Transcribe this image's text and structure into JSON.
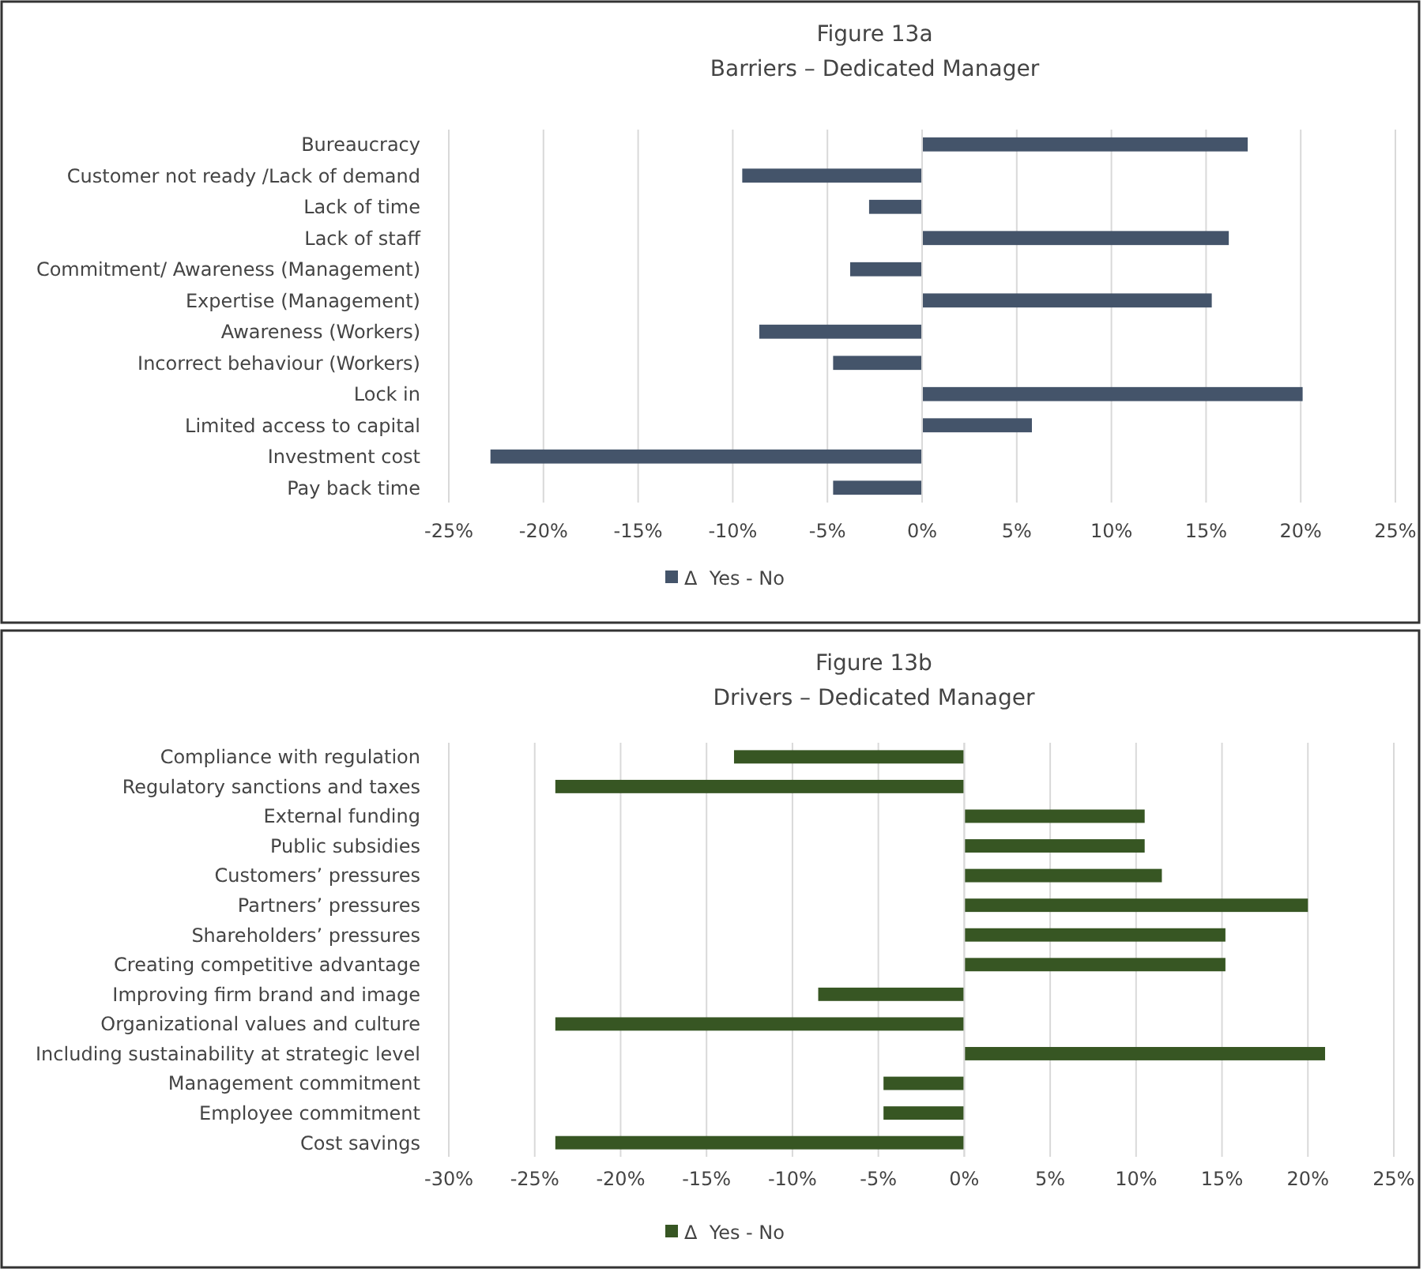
{
  "chart_data": [
    {
      "type": "bar",
      "orientation": "horizontal",
      "title": "Figure 13a",
      "subtitle": "Barriers – Dedicated Manager",
      "categories": [
        "Bureaucracy",
        "Customer not ready /Lack of demand",
        "Lack of time",
        "Lack of staff",
        "Commitment/ Awareness (Management)",
        "Expertise (Management)",
        "Awareness (Workers)",
        "Incorrect behaviour (Workers)",
        "Lock in",
        "Limited access to capital",
        "Investment cost",
        "Pay back time"
      ],
      "series": [
        {
          "name": "Δ  Yes - No",
          "color": "#44546a",
          "values": [
            17.2,
            -9.5,
            -2.8,
            16.2,
            -3.8,
            15.3,
            -8.6,
            -4.7,
            20.1,
            5.8,
            -22.8,
            -4.7
          ]
        }
      ],
      "xlim": [
        -25,
        25
      ],
      "xticks": [
        {
          "value": -25,
          "label": "-25%"
        },
        {
          "value": -20,
          "label": "-20%"
        },
        {
          "value": -15,
          "label": "-15%"
        },
        {
          "value": -10,
          "label": "-10%"
        },
        {
          "value": -5,
          "label": "-5%"
        },
        {
          "value": 0,
          "label": "0%"
        },
        {
          "value": 5,
          "label": "5%"
        },
        {
          "value": 10,
          "label": "10%"
        },
        {
          "value": 15,
          "label": "15%"
        },
        {
          "value": 20,
          "label": "20%"
        },
        {
          "value": 25,
          "label": "25%"
        }
      ],
      "grid": "x",
      "legend": "bottom"
    },
    {
      "type": "bar",
      "orientation": "horizontal",
      "title": "Figure 13b",
      "subtitle": "Drivers – Dedicated Manager",
      "categories": [
        "Compliance with regulation",
        "Regulatory sanctions and taxes",
        "External funding",
        "Public subsidies",
        "Customers’ pressures",
        "Partners’ pressures",
        "Shareholders’ pressures",
        "Creating competitive advantage",
        "Improving firm brand and image",
        "Organizational values and culture",
        "Including sustainability at strategic level",
        "Management commitment",
        "Employee commitment",
        "Cost savings"
      ],
      "series": [
        {
          "name": "Δ  Yes - No",
          "color": "#375623",
          "values": [
            -13.4,
            -23.8,
            10.5,
            10.5,
            11.5,
            20.0,
            15.2,
            15.2,
            -8.5,
            -23.8,
            21.0,
            -4.7,
            -4.7,
            -23.8
          ]
        }
      ],
      "xlim": [
        -30,
        25
      ],
      "xticks": [
        {
          "value": -30,
          "label": "-30%"
        },
        {
          "value": -25,
          "label": "-25%"
        },
        {
          "value": -20,
          "label": "-20%"
        },
        {
          "value": -15,
          "label": "-15%"
        },
        {
          "value": -10,
          "label": "-10%"
        },
        {
          "value": -5,
          "label": "-5%"
        },
        {
          "value": 0,
          "label": "0%"
        },
        {
          "value": 5,
          "label": "5%"
        },
        {
          "value": 10,
          "label": "10%"
        },
        {
          "value": 15,
          "label": "15%"
        },
        {
          "value": 20,
          "label": "20%"
        },
        {
          "value": 25,
          "label": "25%"
        }
      ],
      "grid": "x",
      "legend": "bottom"
    }
  ]
}
